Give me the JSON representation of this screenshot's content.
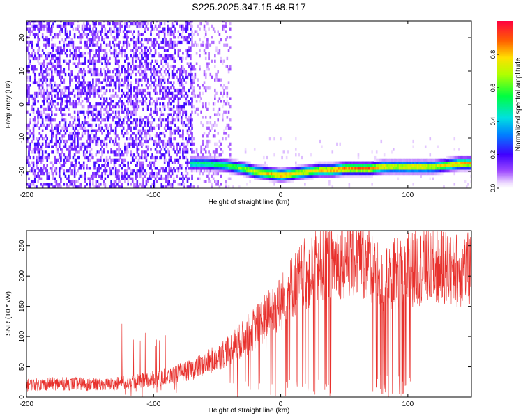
{
  "title": "S225.2025.347.15.48.R17",
  "chart_data": [
    {
      "type": "heatmap",
      "xlabel": "Height of straight line (km)",
      "ylabel": "Frequency (Hz)",
      "xlim": [
        -200,
        150
      ],
      "ylim": [
        -25,
        25
      ],
      "xticks": [
        -200,
        -100,
        0,
        100
      ],
      "yticks": [
        -20,
        -10,
        0,
        10,
        20
      ],
      "colorbar": {
        "label": "Normalized spectral amplitude",
        "range": [
          0,
          1
        ],
        "ticks": [
          "0.0",
          "0.2",
          "0.4",
          "0.6",
          "0.8"
        ],
        "colormap": "rainbow (white to purple to blue to cyan to green to yellow to red)"
      },
      "dominant_line": {
        "x": [
          -72,
          -60,
          -45,
          -30,
          -20,
          -10,
          0,
          10,
          20,
          30,
          40,
          50,
          60,
          70,
          80,
          90,
          100,
          110,
          120,
          130,
          140,
          150
        ],
        "frequency": [
          -18,
          -18,
          -18.5,
          -19.5,
          -20.5,
          -21,
          -21.5,
          -21,
          -20.5,
          -20,
          -20,
          -19.5,
          -19.5,
          -19.5,
          -19,
          -19,
          -19,
          -19,
          -19,
          -18.5,
          -18,
          -18
        ],
        "peak_amplitude": [
          0.55,
          0.55,
          0.6,
          0.7,
          0.8,
          0.85,
          0.9,
          0.85,
          0.8,
          0.85,
          0.9,
          0.95,
          0.95,
          0.95,
          0.85,
          0.8,
          0.85,
          0.85,
          0.8,
          0.85,
          0.9,
          0.9
        ]
      },
      "noise_region": {
        "x_range": [
          -200,
          -70
        ],
        "amplitude": 0.2
      },
      "sparse_noise_region": {
        "x_range": [
          -70,
          -40
        ],
        "amplitude": 0.1
      }
    },
    {
      "type": "line",
      "xlabel": "Height of straight line (km)",
      "ylabel": "SNR (10 * v/v)",
      "xlim": [
        -200,
        150
      ],
      "ylim": [
        0,
        275
      ],
      "xticks": [
        -200,
        -100,
        0,
        100
      ],
      "yticks": [
        0,
        50,
        100,
        150,
        200,
        250
      ],
      "color": "#e8312d",
      "series": [
        {
          "x": [
            -200,
            -180,
            -160,
            -140,
            -130,
            -120,
            -110,
            -100,
            -90,
            -80,
            -70,
            -60,
            -50,
            -40,
            -30,
            -20,
            -10,
            0,
            10,
            20,
            30,
            40,
            50,
            60,
            70,
            75,
            80,
            90,
            100,
            110,
            120,
            130,
            140,
            150
          ],
          "values": [
            20,
            22,
            22,
            20,
            22,
            25,
            28,
            30,
            35,
            40,
            45,
            55,
            65,
            80,
            95,
            115,
            135,
            155,
            185,
            205,
            215,
            225,
            230,
            230,
            225,
            200,
            185,
            205,
            210,
            215,
            215,
            215,
            210,
            210
          ]
        }
      ]
    }
  ]
}
